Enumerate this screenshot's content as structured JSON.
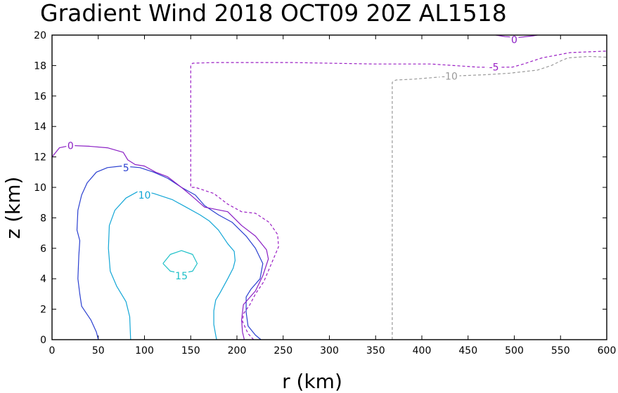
{
  "chart_data": {
    "type": "line",
    "subtype": "contour",
    "title": "Gradient Wind 2018 OCT09 20Z  AL1518",
    "xlabel": "r (km)",
    "ylabel": "z (km)",
    "xlim": [
      0,
      600
    ],
    "ylim": [
      0,
      20
    ],
    "xticks": [
      0,
      50,
      100,
      150,
      200,
      250,
      300,
      350,
      400,
      450,
      500,
      550,
      600
    ],
    "yticks": [
      0,
      2,
      4,
      6,
      8,
      10,
      12,
      14,
      16,
      18,
      20
    ],
    "grid": false,
    "series": [
      {
        "name": "15",
        "color": "#1ec0c8",
        "dashed": false,
        "label": {
          "text": "15",
          "x": 140,
          "y": 4.2
        },
        "points": [
          [
            120,
            5.0
          ],
          [
            128,
            5.6
          ],
          [
            140,
            5.85
          ],
          [
            152,
            5.6
          ],
          [
            157,
            5.0
          ],
          [
            152,
            4.5
          ],
          [
            140,
            4.35
          ],
          [
            128,
            4.5
          ],
          [
            120,
            5.0
          ]
        ]
      },
      {
        "name": "10",
        "color": "#12a6d6",
        "dashed": false,
        "label": {
          "text": "10",
          "x": 100,
          "y": 9.5
        },
        "points": [
          [
            85,
            0
          ],
          [
            84,
            1.5
          ],
          [
            80,
            2.5
          ],
          [
            70,
            3.5
          ],
          [
            63,
            4.5
          ],
          [
            61,
            6.0
          ],
          [
            62,
            7.5
          ],
          [
            68,
            8.5
          ],
          [
            80,
            9.3
          ],
          [
            95,
            9.8
          ],
          [
            110,
            9.6
          ],
          [
            130,
            9.2
          ],
          [
            145,
            8.7
          ],
          [
            160,
            8.2
          ],
          [
            170,
            7.8
          ],
          [
            180,
            7.2
          ],
          [
            190,
            6.3
          ],
          [
            197,
            5.8
          ],
          [
            198,
            5.2
          ],
          [
            196,
            4.7
          ],
          [
            190,
            4.0
          ],
          [
            182,
            3.1
          ],
          [
            177,
            2.6
          ],
          [
            175,
            1.9
          ],
          [
            175,
            1.0
          ],
          [
            177,
            0.3
          ],
          [
            178,
            0
          ]
        ]
      },
      {
        "name": "5",
        "color": "#2a3fd0",
        "dashed": false,
        "label": {
          "text": "5",
          "x": 80,
          "y": 11.3
        },
        "points": [
          [
            50,
            0
          ],
          [
            48,
            0.5
          ],
          [
            42,
            1.3
          ],
          [
            32,
            2.2
          ],
          [
            30,
            3.0
          ],
          [
            28,
            4.0
          ],
          [
            29,
            5.5
          ],
          [
            30,
            6.5
          ],
          [
            27,
            7.2
          ],
          [
            28,
            8.5
          ],
          [
            32,
            9.5
          ],
          [
            38,
            10.3
          ],
          [
            48,
            11.0
          ],
          [
            60,
            11.3
          ],
          [
            75,
            11.4
          ],
          [
            95,
            11.3
          ],
          [
            110,
            11.0
          ],
          [
            125,
            10.6
          ],
          [
            140,
            10.0
          ],
          [
            155,
            9.5
          ],
          [
            165,
            8.8
          ],
          [
            180,
            8.2
          ],
          [
            195,
            7.7
          ],
          [
            210,
            6.8
          ],
          [
            220,
            6.0
          ],
          [
            228,
            5.0
          ],
          [
            225,
            4.0
          ],
          [
            215,
            3.3
          ],
          [
            210,
            2.8
          ],
          [
            210,
            1.8
          ],
          [
            212,
            0.9
          ],
          [
            220,
            0.3
          ],
          [
            226,
            0
          ]
        ]
      },
      {
        "name": "0",
        "color": "#8a1ec4",
        "dashed": false,
        "label": {
          "text": "0",
          "x": 20,
          "y": 12.75
        },
        "points": [
          [
            0,
            12.0
          ],
          [
            4,
            12.3
          ],
          [
            8,
            12.6
          ],
          [
            20,
            12.75
          ],
          [
            40,
            12.7
          ],
          [
            60,
            12.6
          ],
          [
            77,
            12.3
          ],
          [
            82,
            11.8
          ],
          [
            90,
            11.5
          ],
          [
            100,
            11.4
          ],
          [
            112,
            11.0
          ],
          [
            125,
            10.7
          ],
          [
            140,
            10.0
          ],
          [
            150,
            9.5
          ],
          [
            165,
            8.7
          ],
          [
            190,
            8.4
          ],
          [
            205,
            7.5
          ],
          [
            220,
            6.8
          ],
          [
            232,
            5.9
          ],
          [
            234,
            5.3
          ],
          [
            228,
            4.2
          ],
          [
            220,
            3.2
          ],
          [
            207,
            2.3
          ],
          [
            205,
            1.3
          ],
          [
            206,
            0.5
          ],
          [
            208,
            0
          ]
        ]
      },
      {
        "name": "-5",
        "color": "#9a1ec4",
        "dashed": true,
        "label": {
          "text": "-5",
          "x": 478,
          "y": 17.9
        },
        "points": [
          [
            218,
            0
          ],
          [
            212,
            0.4
          ],
          [
            206,
            1.2
          ],
          [
            207,
            1.7
          ],
          [
            214,
            2.3
          ],
          [
            220,
            3.0
          ],
          [
            229,
            3.8
          ],
          [
            236,
            4.8
          ],
          [
            245,
            6.1
          ],
          [
            244,
            6.9
          ],
          [
            235,
            7.7
          ],
          [
            220,
            8.3
          ],
          [
            205,
            8.4
          ],
          [
            190,
            8.9
          ],
          [
            175,
            9.6
          ],
          [
            155,
            10.0
          ],
          [
            150,
            10.0
          ],
          [
            150,
            18.0
          ],
          [
            152,
            18.15
          ],
          [
            175,
            18.2
          ],
          [
            260,
            18.2
          ],
          [
            348,
            18.1
          ],
          [
            410,
            18.1
          ],
          [
            460,
            17.9
          ],
          [
            475,
            17.88
          ],
          [
            498,
            17.9
          ],
          [
            510,
            18.1
          ],
          [
            530,
            18.5
          ],
          [
            560,
            18.85
          ],
          [
            600,
            18.95
          ]
        ]
      },
      {
        "name": "-10",
        "color": "#9a9a9a",
        "dashed": true,
        "label": {
          "text": "-10",
          "x": 430,
          "y": 17.3
        },
        "points": [
          [
            368,
            0
          ],
          [
            368,
            16.9
          ],
          [
            372,
            17.05
          ],
          [
            390,
            17.1
          ],
          [
            410,
            17.2
          ],
          [
            430,
            17.3
          ],
          [
            470,
            17.4
          ],
          [
            495,
            17.5
          ],
          [
            510,
            17.6
          ],
          [
            525,
            17.7
          ],
          [
            540,
            18.0
          ],
          [
            550,
            18.3
          ],
          [
            558,
            18.5
          ],
          [
            580,
            18.6
          ],
          [
            600,
            18.55
          ]
        ]
      },
      {
        "name": "0",
        "color": "#8a1ec4",
        "dashed": false,
        "label": {
          "text": "0",
          "x": 500,
          "y": 19.7
        },
        "points": [
          [
            480,
            20.0
          ],
          [
            490,
            19.9
          ],
          [
            505,
            19.85
          ],
          [
            520,
            19.95
          ],
          [
            525,
            20.0
          ]
        ]
      }
    ]
  }
}
